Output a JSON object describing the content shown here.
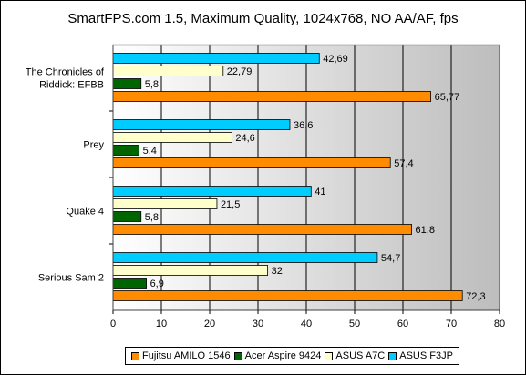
{
  "chart_data": {
    "type": "bar",
    "orientation": "horizontal",
    "title": "SmartFPS.com 1.5, Maximum Quality, 1024x768, NO AA/AF, fps",
    "categories": [
      "The Chronicles of Riddick: EFBB",
      "Prey",
      "Quake 4",
      "Serious Sam 2"
    ],
    "series": [
      {
        "name": "Fujitsu AMILO 1546",
        "color": "#ff8c00",
        "values": [
          65.77,
          57.4,
          61.8,
          72.3
        ],
        "labels": [
          "65,77",
          "57,4",
          "61,8",
          "72,3"
        ]
      },
      {
        "name": "Acer Aspire 9424",
        "color": "#006400",
        "values": [
          5.8,
          5.4,
          5.8,
          6.9
        ],
        "labels": [
          "5,8",
          "5,4",
          "5,8",
          "6,9"
        ]
      },
      {
        "name": "ASUS A7C",
        "color": "#ffffcc",
        "values": [
          22.79,
          24.6,
          21.5,
          32
        ],
        "labels": [
          "22,79",
          "24,6",
          "21,5",
          "32"
        ]
      },
      {
        "name": "ASUS F3JP",
        "color": "#00ccff",
        "values": [
          42.69,
          36.6,
          41,
          54.7
        ],
        "labels": [
          "42,69",
          "36,6",
          "41",
          "54,7"
        ]
      }
    ],
    "xlim": [
      0,
      80
    ],
    "xticks": [
      0,
      10,
      20,
      30,
      40,
      50,
      60,
      70,
      80
    ],
    "grid": true,
    "legend_position": "bottom"
  }
}
